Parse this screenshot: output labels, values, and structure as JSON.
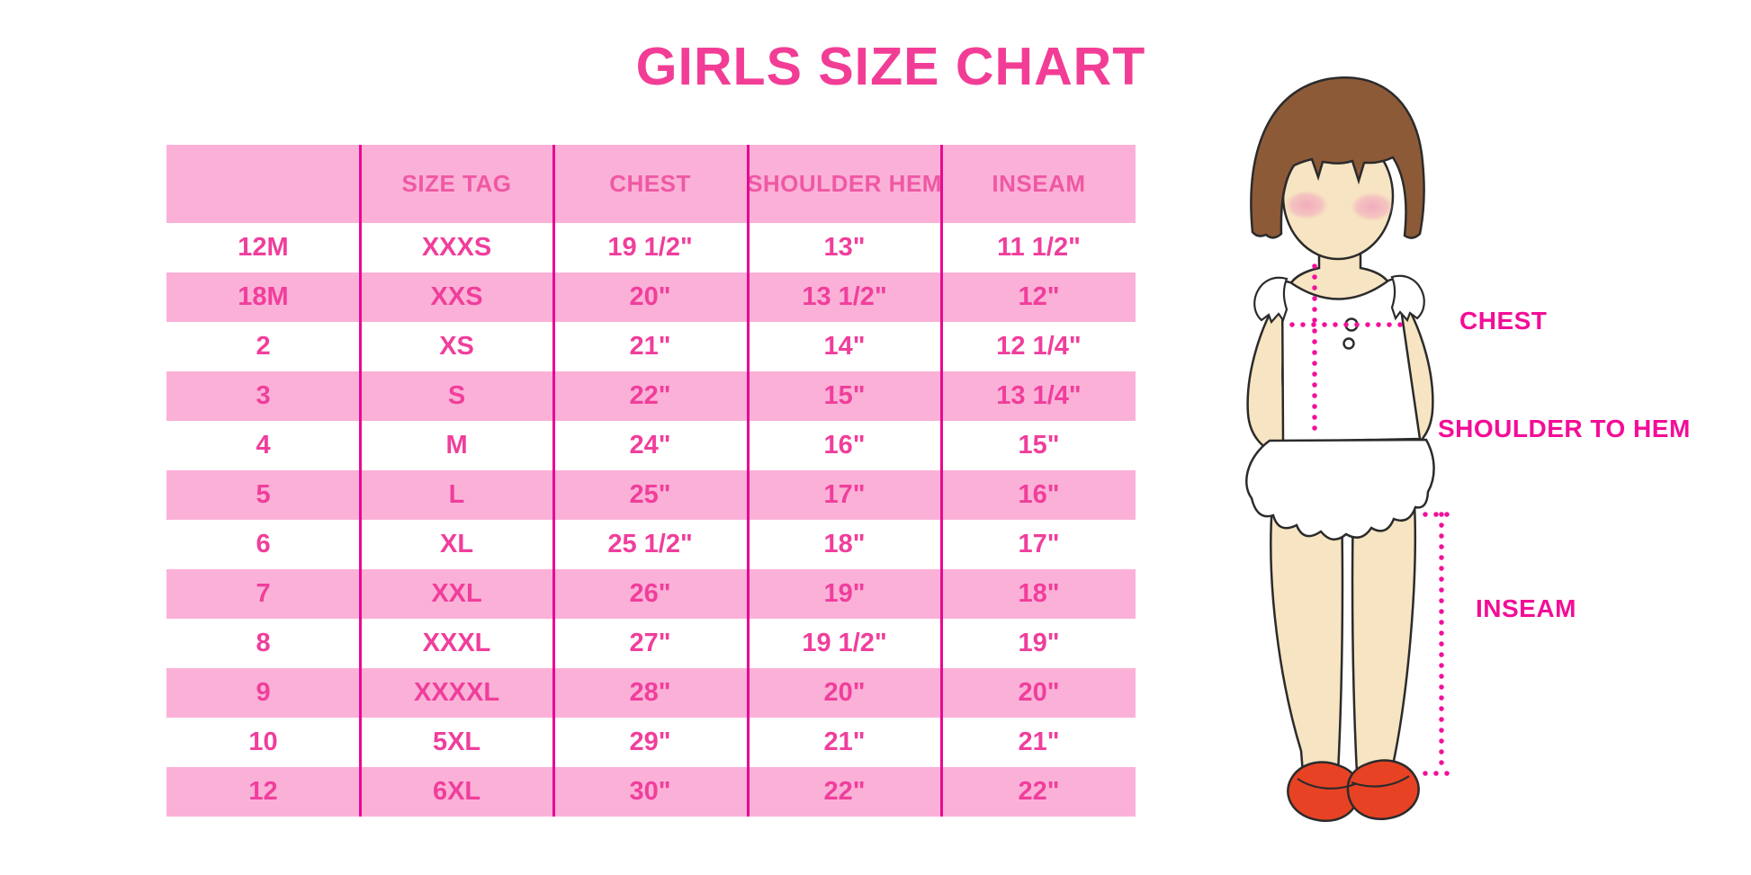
{
  "title": "GIRLS SIZE CHART",
  "chart_data": {
    "type": "table",
    "title": "GIRLS SIZE CHART",
    "columns": [
      "",
      "SIZE TAG",
      "CHEST",
      "SHOULDER HEM",
      "INSEAM"
    ],
    "rows": [
      [
        "12M",
        "XXXS",
        "19 1/2\"",
        "13\"",
        "11 1/2\""
      ],
      [
        "18M",
        "XXS",
        "20\"",
        "13 1/2\"",
        "12\""
      ],
      [
        "2",
        "XS",
        "21\"",
        "14\"",
        "12 1/4\""
      ],
      [
        "3",
        "S",
        "22\"",
        "15\"",
        "13 1/4\""
      ],
      [
        "4",
        "M",
        "24\"",
        "16\"",
        "15\""
      ],
      [
        "5",
        "L",
        "25\"",
        "17\"",
        "16\""
      ],
      [
        "6",
        "XL",
        "25 1/2\"",
        "18\"",
        "17\""
      ],
      [
        "7",
        "XXL",
        "26\"",
        "19\"",
        "18\""
      ],
      [
        "8",
        "XXXL",
        "27\"",
        "19 1/2\"",
        "19\""
      ],
      [
        "9",
        "XXXXL",
        "28\"",
        "20\"",
        "20\""
      ],
      [
        "10",
        "5XL",
        "29\"",
        "21\"",
        "21\""
      ],
      [
        "12",
        "6XL",
        "30\"",
        "22\"",
        "22\""
      ]
    ],
    "layout": {
      "alternating_rows": "white / pink starting white",
      "grid": "vertical magenta column separators only",
      "legend_position": "none"
    }
  },
  "figure_labels": {
    "chest": "CHEST",
    "shoulder_to_hem": "SHOULDER TO HEM",
    "inseam": "INSEAM"
  },
  "colors": {
    "title_pink": "#F23D96",
    "header_text_pink": "#EF58A4",
    "cell_text_pink": "#F03E9C",
    "row_background_pink": "#FBB1D7",
    "column_line_magenta": "#E90795",
    "measure_label_magenta": "#F30D97",
    "dotted_line_magenta": "#F2109B",
    "hair_brown": "#8D5A38",
    "skin": "#F7E4C2",
    "blush": "#F2A9BD",
    "shoe_red": "#E84224",
    "outline": "#2B2B2B"
  }
}
